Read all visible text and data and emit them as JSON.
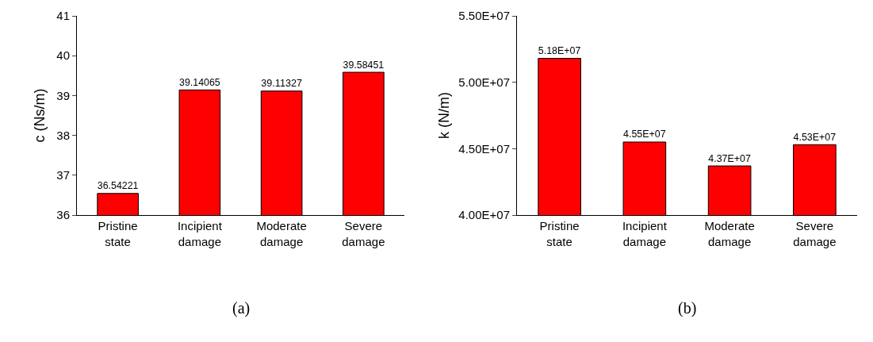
{
  "chart_data": [
    {
      "type": "bar",
      "ylabel": "c (Ns/m)",
      "categories": [
        "Pristine state",
        "Incipient damage",
        "Moderate damage",
        "Severe damage"
      ],
      "values": [
        36.54221,
        39.14065,
        39.11327,
        39.58451
      ],
      "color": "#ff0000",
      "data_labels": true,
      "ylim": [
        36,
        41
      ],
      "yticks": [
        36,
        37,
        38,
        39,
        40,
        41
      ],
      "grid": false,
      "annotations": [
        "(a)"
      ]
    },
    {
      "type": "bar",
      "ylabel": "k (N/m)",
      "categories": [
        "Pristine state",
        "Incipient damage",
        "Moderate damage",
        "Severe damage"
      ],
      "values": [
        51800000,
        45500000,
        43700000,
        45300000
      ],
      "value_labels": [
        "5.18E+07",
        "4.55E+07",
        "4.37E+07",
        "4.53E+07"
      ],
      "color": "#ff0000",
      "ylim": [
        40000000,
        55000000
      ],
      "yticks": [
        {
          "value": 40000000,
          "label": "4.00E+07"
        },
        {
          "value": 45000000,
          "label": "4.50E+07"
        },
        {
          "value": 50000000,
          "label": "5.00E+07"
        },
        {
          "value": 55000000,
          "label": "5.50E+07"
        }
      ],
      "grid": false,
      "annotations": [
        "(b)"
      ]
    }
  ]
}
